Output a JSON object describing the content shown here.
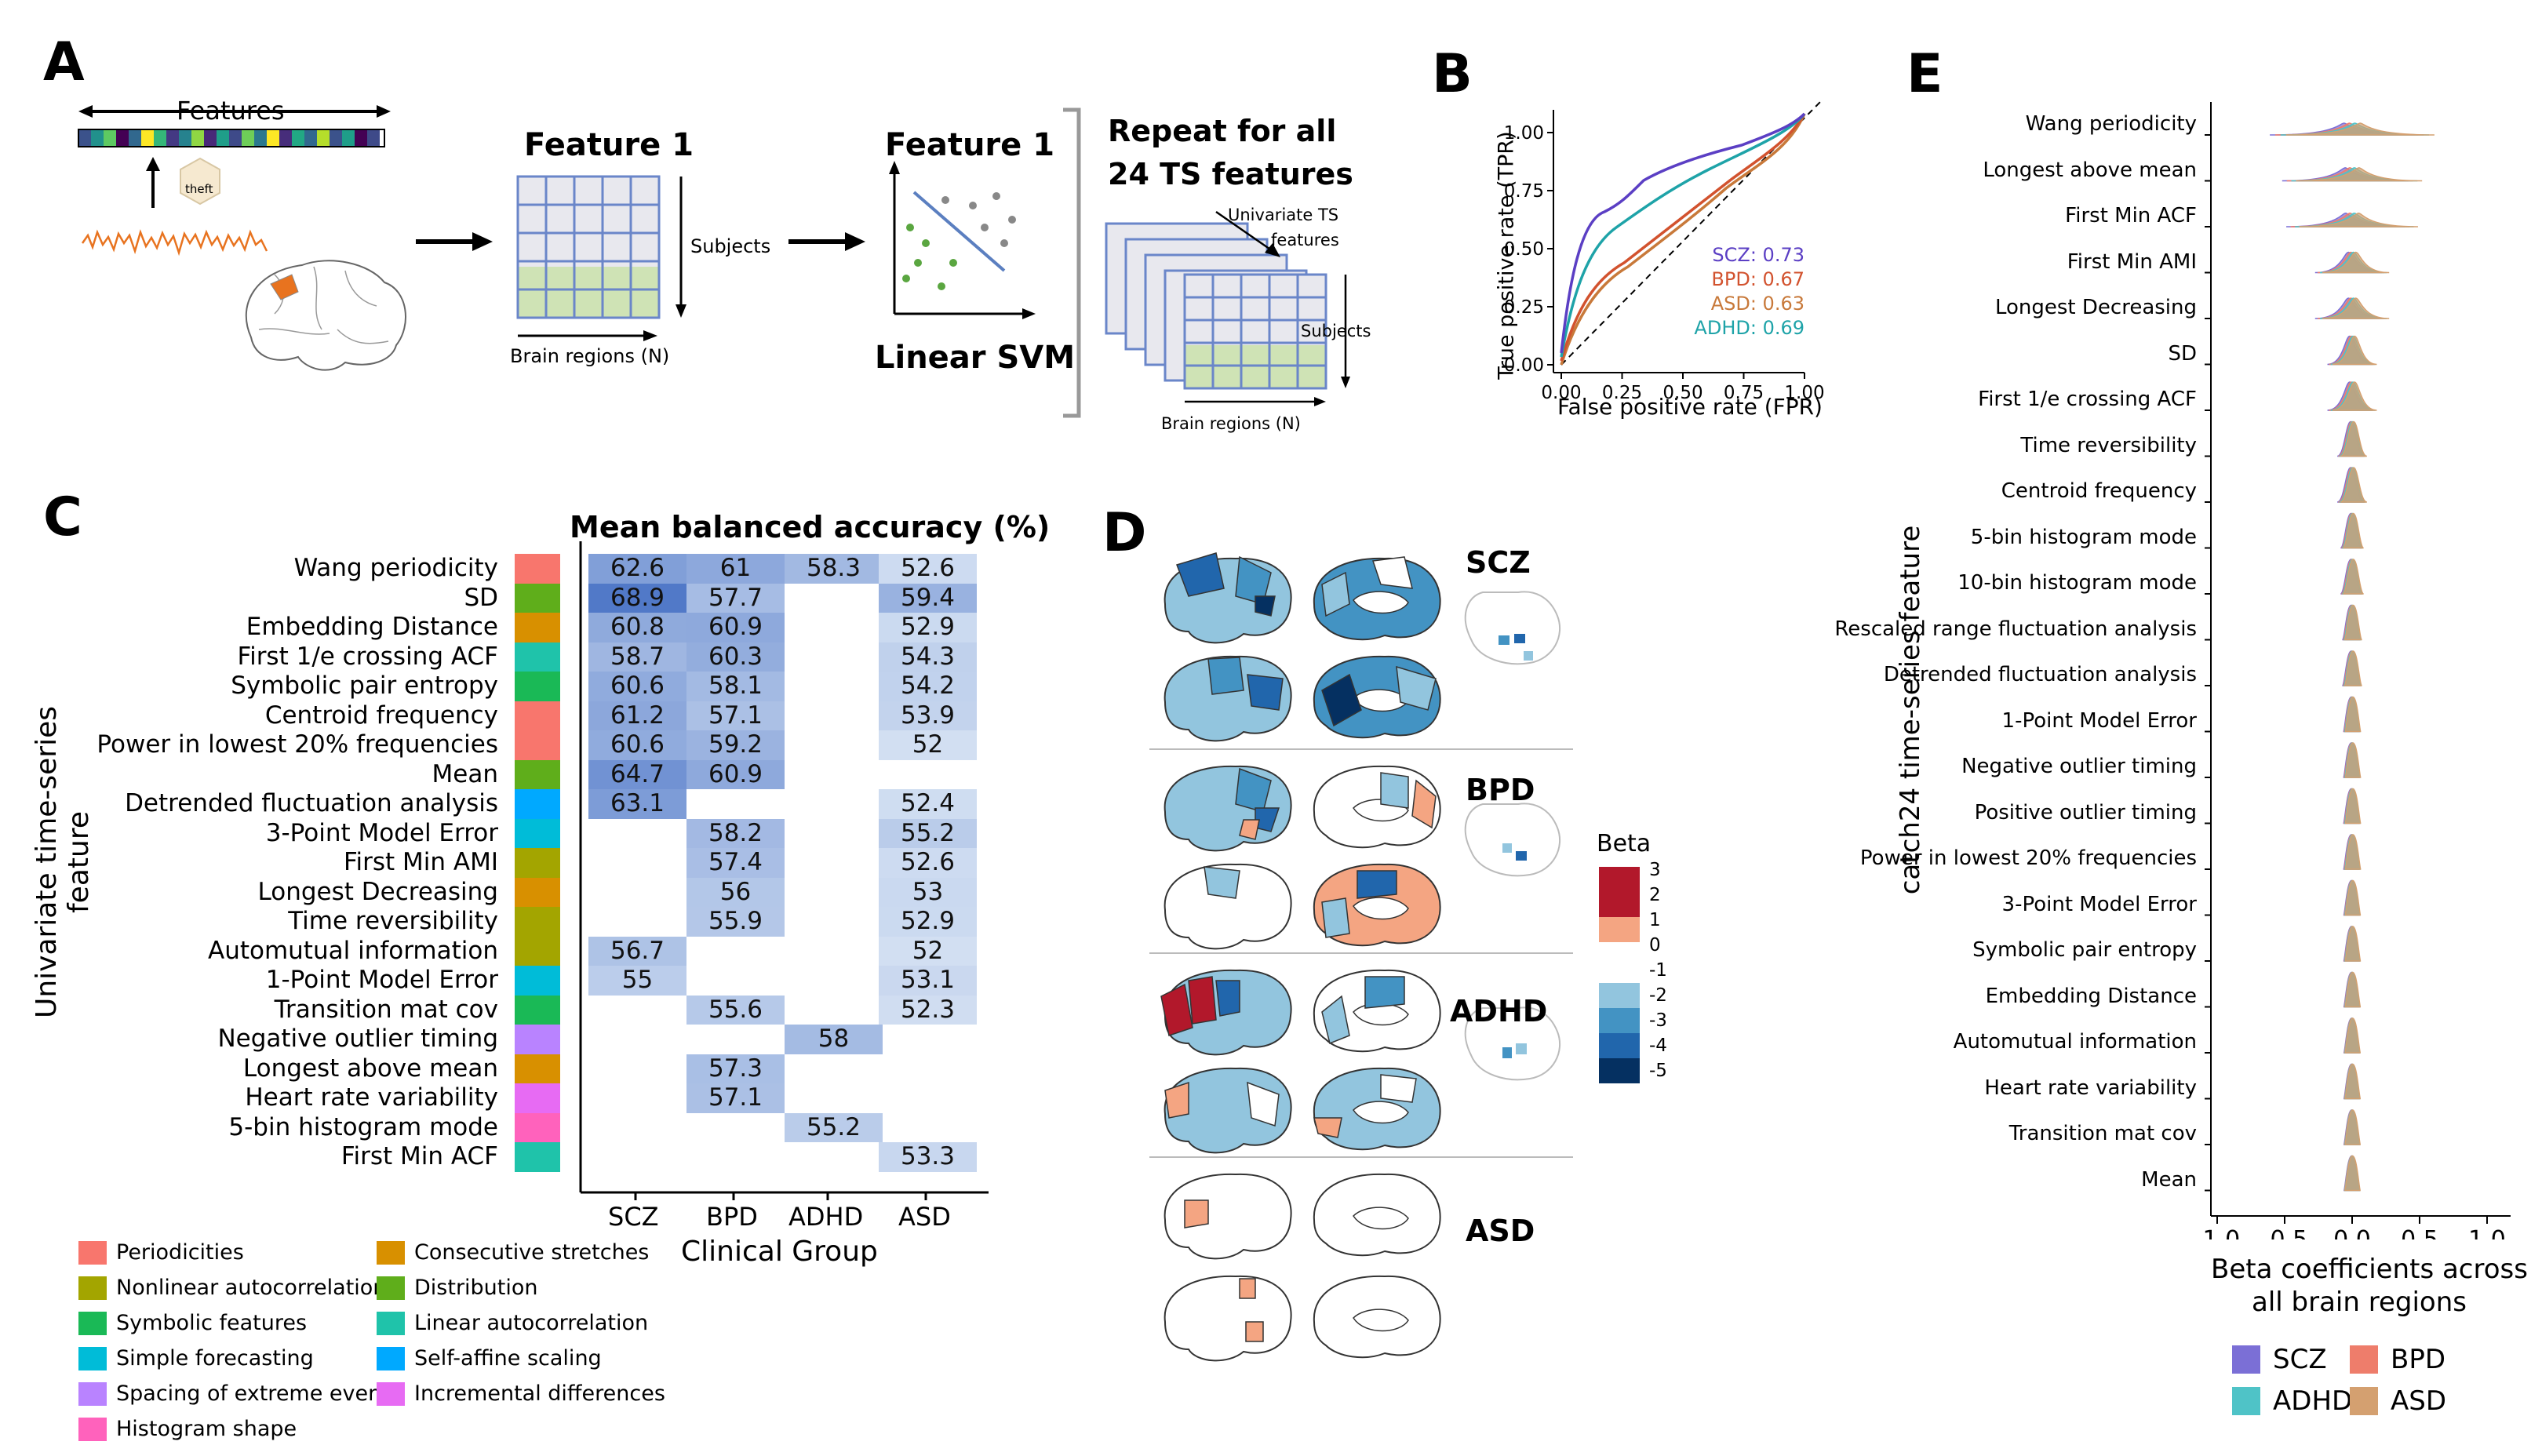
{
  "panels": {
    "a": "A",
    "b": "B",
    "c": "C",
    "d": "D",
    "e": "E"
  },
  "panelA": {
    "features_label": "Features",
    "theft_label": "theft",
    "feature1_a": "Feature 1",
    "subjects": "Subjects",
    "brain_regions": "Brain regions (N)",
    "feature1_b": "Feature 1",
    "linear_svm": "Linear SVM",
    "repeat_line1": "Repeat for all",
    "repeat_line2": "24 TS features",
    "univariate_1": "Univariate TS",
    "univariate_2": "features",
    "subjects_b": "Subjects",
    "brain_regions_b": "Brain regions (N)"
  },
  "panelB": {
    "ylabel": "True positive rate (TPR)",
    "xlabel": "False positive rate (FPR)",
    "ticks": [
      "0.00",
      "0.25",
      "0.50",
      "0.75",
      "1.00"
    ],
    "legend": [
      {
        "text": "SCZ: 0.73",
        "color": "#5b3fc4"
      },
      {
        "text": "BPD: 0.67",
        "color": "#d2522e"
      },
      {
        "text": "ASD: 0.63",
        "color": "#c8793a"
      },
      {
        "text": "ADHD: 0.69",
        "color": "#1ea3a8"
      }
    ]
  },
  "panelC": {
    "title": "Mean balanced accuracy (%)",
    "ylabel": "Univariate time-series feature",
    "xlabel": "Clinical Group",
    "groups": [
      "SCZ",
      "BPD",
      "ADHD",
      "ASD"
    ],
    "features": [
      {
        "name": "Wang periodicity",
        "cat": "#f8766d",
        "v": [
          "62.6",
          "61",
          "58.3",
          "52.6"
        ]
      },
      {
        "name": "SD",
        "cat": "#5fae1b",
        "v": [
          "68.9",
          "57.7",
          "",
          "59.4"
        ]
      },
      {
        "name": "Embedding Distance",
        "cat": "#d89000",
        "v": [
          "60.8",
          "60.9",
          "",
          "52.9"
        ]
      },
      {
        "name": "First 1/e crossing ACF",
        "cat": "#1fc3aa",
        "v": [
          "58.7",
          "60.3",
          "",
          "54.3"
        ]
      },
      {
        "name": "Symbolic pair entropy",
        "cat": "#1ab956",
        "v": [
          "60.6",
          "58.1",
          "",
          "54.2"
        ]
      },
      {
        "name": "Centroid frequency",
        "cat": "#f8766d",
        "v": [
          "61.2",
          "57.1",
          "",
          "53.9"
        ]
      },
      {
        "name": "Power in lowest 20% frequencies",
        "cat": "#f8766d",
        "v": [
          "60.6",
          "59.2",
          "",
          "52"
        ]
      },
      {
        "name": "Mean",
        "cat": "#5fae1b",
        "v": [
          "64.7",
          "60.9",
          "",
          ""
        ]
      },
      {
        "name": "Detrended fluctuation analysis",
        "cat": "#00a9ff",
        "v": [
          "63.1",
          "",
          "",
          "52.4"
        ]
      },
      {
        "name": "3-Point Model Error",
        "cat": "#00bcd8",
        "v": [
          "",
          "58.2",
          "",
          "55.2"
        ]
      },
      {
        "name": "First Min AMI",
        "cat": "#a3a500",
        "v": [
          "",
          "57.4",
          "",
          "52.6"
        ]
      },
      {
        "name": "Longest Decreasing",
        "cat": "#d89000",
        "v": [
          "",
          "56",
          "",
          "53"
        ]
      },
      {
        "name": "Time reversibility",
        "cat": "#a3a500",
        "v": [
          "",
          "55.9",
          "",
          "52.9"
        ]
      },
      {
        "name": "Automutual information",
        "cat": "#a3a500",
        "v": [
          "56.7",
          "",
          "",
          "52"
        ]
      },
      {
        "name": "1-Point Model Error",
        "cat": "#00bcd8",
        "v": [
          "55",
          "",
          "",
          "53.1"
        ]
      },
      {
        "name": "Transition mat cov",
        "cat": "#1ab956",
        "v": [
          "",
          "55.6",
          "",
          "52.3"
        ]
      },
      {
        "name": "Negative outlier timing",
        "cat": "#b983ff",
        "v": [
          "",
          "",
          "58",
          ""
        ]
      },
      {
        "name": "Longest above mean",
        "cat": "#d89000",
        "v": [
          "",
          "57.3",
          "",
          ""
        ]
      },
      {
        "name": "Heart rate variability",
        "cat": "#e76bf3",
        "v": [
          "",
          "57.1",
          "",
          ""
        ]
      },
      {
        "name": "5-bin histogram mode",
        "cat": "#ff62bc",
        "v": [
          "",
          "",
          "55.2",
          ""
        ]
      },
      {
        "name": "First Min ACF",
        "cat": "#1fc3aa",
        "v": [
          "",
          "",
          "",
          "53.3"
        ]
      }
    ],
    "legend": [
      {
        "label": "Periodicities",
        "color": "#f8766d"
      },
      {
        "label": "Nonlinear autocorrelation",
        "color": "#a3a500"
      },
      {
        "label": "Symbolic features",
        "color": "#1ab956"
      },
      {
        "label": "Simple forecasting",
        "color": "#00bcd8"
      },
      {
        "label": "Spacing of extreme events",
        "color": "#b983ff"
      },
      {
        "label": "Histogram shape",
        "color": "#ff62bc"
      },
      {
        "label": "Consecutive stretches",
        "color": "#d89000"
      },
      {
        "label": "Distribution",
        "color": "#5fae1b"
      },
      {
        "label": "Linear autocorrelation",
        "color": "#1fc3aa"
      },
      {
        "label": "Self-affine scaling",
        "color": "#00a9ff"
      },
      {
        "label": "Incremental differences",
        "color": "#e76bf3"
      }
    ]
  },
  "panelD": {
    "groups": [
      "SCZ",
      "BPD",
      "ADHD",
      "ASD"
    ],
    "beta_title": "Beta",
    "beta_ticks": [
      "3",
      "2",
      "1",
      "0",
      "-1",
      "-2",
      "-3",
      "-4",
      "-5"
    ],
    "beta_colors": [
      "#b2182b",
      "#b2182b",
      "#f4a582",
      "#ffffff",
      "#92c5de",
      "#4393c3",
      "#2166ac",
      "#2166ac",
      "#053061"
    ]
  },
  "panelE": {
    "ylabel": "catch24 time-series feature",
    "xlabel_1": "Beta coefficients across",
    "xlabel_2": "all brain regions",
    "xticks": [
      "-1.0",
      "-0.5",
      "0.0",
      "0.5",
      "1.0"
    ],
    "features": [
      {
        "label": "Wang periodicity",
        "spread": 1.0
      },
      {
        "label": "Longest above mean",
        "spread": 0.85
      },
      {
        "label": "First Min ACF",
        "spread": 0.8
      },
      {
        "label": "First Min AMI",
        "spread": 0.45
      },
      {
        "label": "Longest Decreasing",
        "spread": 0.45
      },
      {
        "label": "SD",
        "spread": 0.3
      },
      {
        "label": "First 1/e crossing ACF",
        "spread": 0.3
      },
      {
        "label": "Time reversibility",
        "spread": 0.18
      },
      {
        "label": "Centroid frequency",
        "spread": 0.18
      },
      {
        "label": "5-bin histogram mode",
        "spread": 0.14
      },
      {
        "label": "10-bin histogram mode",
        "spread": 0.14
      },
      {
        "label": "Rescaled range fluctuation analysis",
        "spread": 0.12
      },
      {
        "label": "Detrended fluctuation analysis",
        "spread": 0.12
      },
      {
        "label": "1-Point Model Error",
        "spread": 0.1
      },
      {
        "label": "Negative outlier timing",
        "spread": 0.1
      },
      {
        "label": "Positive outlier timing",
        "spread": 0.1
      },
      {
        "label": "Power in lowest 20% frequencies",
        "spread": 0.1
      },
      {
        "label": "3-Point Model Error",
        "spread": 0.08
      },
      {
        "label": "Symbolic pair entropy",
        "spread": 0.08
      },
      {
        "label": "Embedding Distance",
        "spread": 0.07
      },
      {
        "label": "Automutual information",
        "spread": 0.06
      },
      {
        "label": "Heart rate variability",
        "spread": 0.06
      },
      {
        "label": "Transition mat cov",
        "spread": 0.06
      },
      {
        "label": "Mean",
        "spread": 0.05
      }
    ],
    "legend": [
      {
        "label": "SCZ",
        "color": "#7b6fd6"
      },
      {
        "label": "BPD",
        "color": "#ee7d6b"
      },
      {
        "label": "ADHD",
        "color": "#4fc3c7"
      },
      {
        "label": "ASD",
        "color": "#d4a070"
      }
    ]
  }
}
